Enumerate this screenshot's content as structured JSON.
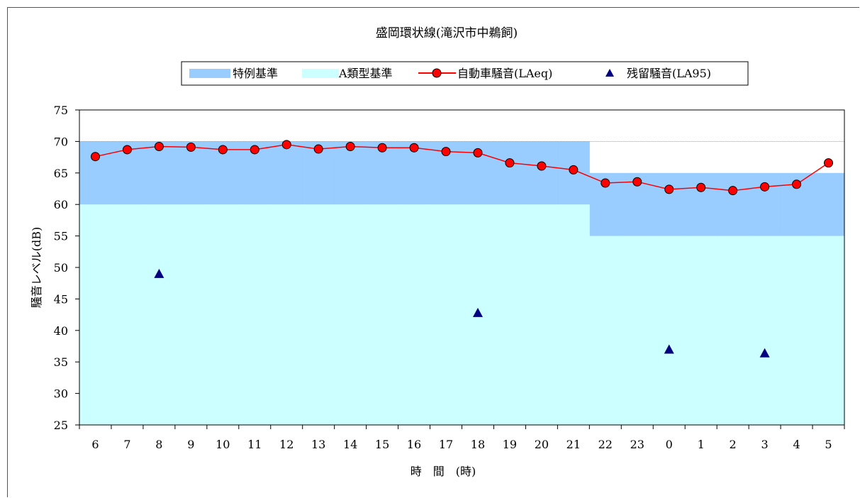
{
  "chart_data": {
    "type": "line",
    "title": "盛岡環状線(滝沢市中鵜飼)",
    "xlabel": "時　間　(時)",
    "ylabel": "騒音レベル(dB)",
    "ylim": [
      25,
      75
    ],
    "yticks": [
      25,
      30,
      35,
      40,
      45,
      50,
      55,
      60,
      65,
      70,
      75
    ],
    "categories": [
      "6",
      "7",
      "8",
      "9",
      "10",
      "11",
      "12",
      "13",
      "14",
      "15",
      "16",
      "17",
      "18",
      "19",
      "20",
      "21",
      "22",
      "23",
      "0",
      "1",
      "2",
      "3",
      "4",
      "5"
    ],
    "legend_position": "top",
    "bands": [
      {
        "name": "特例基準",
        "color": "#99ccff",
        "values": [
          70,
          70,
          70,
          70,
          70,
          70,
          70,
          70,
          70,
          70,
          70,
          70,
          70,
          70,
          70,
          70,
          65,
          65,
          65,
          65,
          65,
          65,
          65,
          65
        ]
      },
      {
        "name": "A類型基準",
        "color": "#ccffff",
        "values": [
          60,
          60,
          60,
          60,
          60,
          60,
          60,
          60,
          60,
          60,
          60,
          60,
          60,
          60,
          60,
          60,
          55,
          55,
          55,
          55,
          55,
          55,
          55,
          55
        ]
      }
    ],
    "series": [
      {
        "name": "自動車騒音(LAeq)",
        "color": "#ff0000",
        "marker": "circle",
        "values": [
          67.6,
          68.7,
          69.2,
          69.1,
          68.7,
          68.7,
          69.5,
          68.8,
          69.2,
          69.0,
          69.0,
          68.4,
          68.2,
          66.6,
          66.1,
          65.5,
          63.4,
          63.6,
          62.4,
          62.7,
          62.2,
          62.8,
          63.2,
          66.6
        ]
      },
      {
        "name": "残留騒音(LA95)",
        "color": "#000080",
        "marker": "triangle",
        "values": [
          null,
          null,
          49.0,
          null,
          null,
          null,
          null,
          null,
          null,
          null,
          null,
          null,
          42.8,
          null,
          null,
          null,
          null,
          null,
          37.0,
          null,
          null,
          36.4,
          null,
          null
        ]
      }
    ]
  }
}
